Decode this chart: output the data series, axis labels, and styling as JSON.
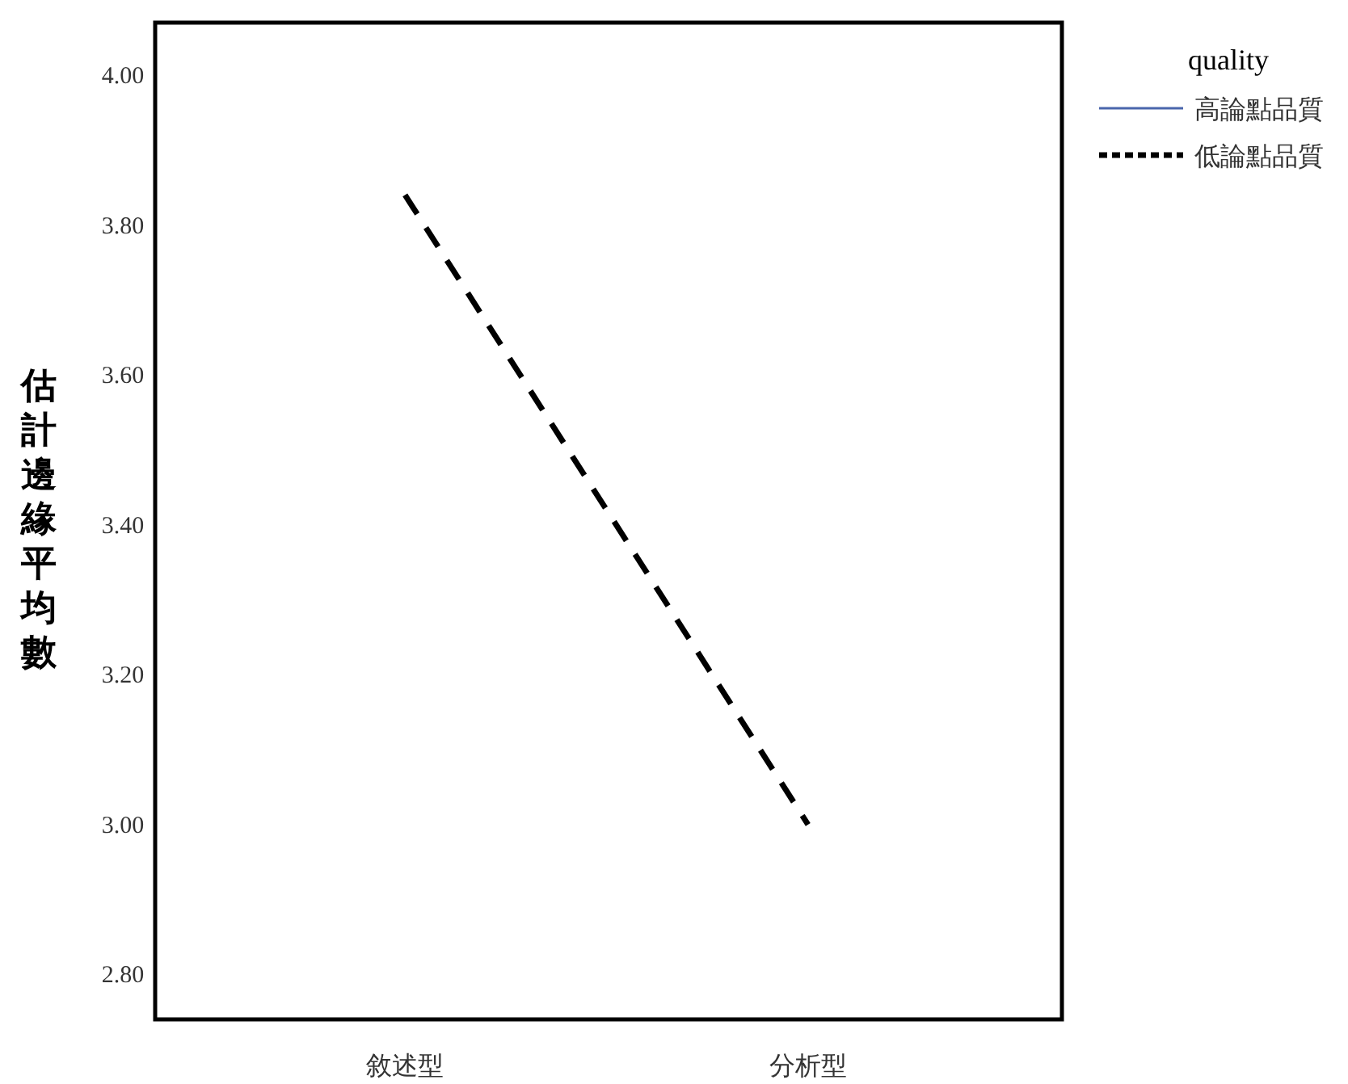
{
  "chart_data": {
    "type": "line",
    "ylabel": "估計邊緣平均數",
    "legend_title": "quality",
    "categories": [
      "敘述型",
      "分析型"
    ],
    "series": [
      {
        "name": "高論點品質",
        "color": "#4a66ac",
        "values": [
          null,
          null
        ],
        "line_style": "solid"
      },
      {
        "name": "低論點品質",
        "color": "#000000",
        "values": [
          3.84,
          3.0
        ],
        "line_style": "dashed"
      }
    ],
    "ylim": [
      2.74,
      4.07
    ],
    "yticks": [
      {
        "value": 2.8,
        "label": "2.80"
      },
      {
        "value": 3.0,
        "label": "3.00"
      },
      {
        "value": 3.2,
        "label": "3.20"
      },
      {
        "value": 3.4,
        "label": "3.40"
      },
      {
        "value": 3.6,
        "label": "3.60"
      },
      {
        "value": 3.8,
        "label": "3.80"
      },
      {
        "value": 4.0,
        "label": "4.00"
      }
    ],
    "legend": "top right",
    "grid": false
  }
}
